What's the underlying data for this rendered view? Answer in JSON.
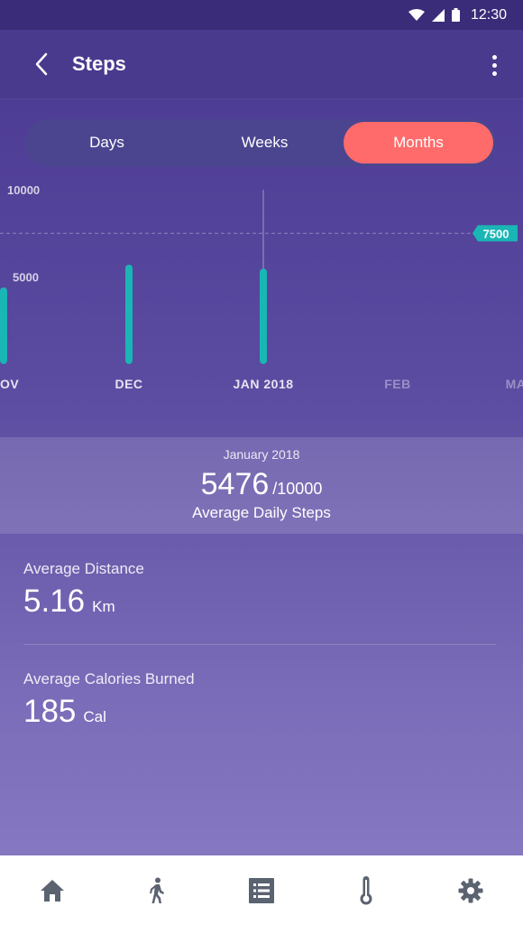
{
  "status_bar": {
    "time": "12:30"
  },
  "app_bar": {
    "title": "Steps"
  },
  "tabs": [
    {
      "label": "Days",
      "active": false
    },
    {
      "label": "Weeks",
      "active": false
    },
    {
      "label": "Months",
      "active": true
    }
  ],
  "chart_data": {
    "type": "bar",
    "categories": [
      "OV",
      "DEC",
      "JAN 2018",
      "FEB",
      "MA"
    ],
    "values": [
      4400,
      5700,
      5476,
      null,
      null
    ],
    "y_ticks": [
      "10000",
      "5000"
    ],
    "ylim": [
      0,
      10000
    ],
    "goal_line": {
      "value": 7500,
      "label": "7500"
    },
    "selected_category": "JAN 2018",
    "grid": false,
    "colors": {
      "bar": "#1ab5b5",
      "goal_badge": "#1ab5b5"
    }
  },
  "summary": {
    "period": "January 2018",
    "value": "5476",
    "goal": "/10000",
    "label": "Average Daily Steps"
  },
  "metrics": {
    "distance": {
      "label": "Average Distance",
      "value": "5.16",
      "unit": "Km"
    },
    "calories": {
      "label": "Average Calories Burned",
      "value": "185",
      "unit": "Cal"
    }
  },
  "bottom_nav": [
    {
      "icon": "home-icon"
    },
    {
      "icon": "walk-icon"
    },
    {
      "icon": "list-icon"
    },
    {
      "icon": "thermometer-icon"
    },
    {
      "icon": "gear-icon"
    }
  ],
  "colors": {
    "accent": "#ff6b6b",
    "teal": "#1ab5b5"
  }
}
